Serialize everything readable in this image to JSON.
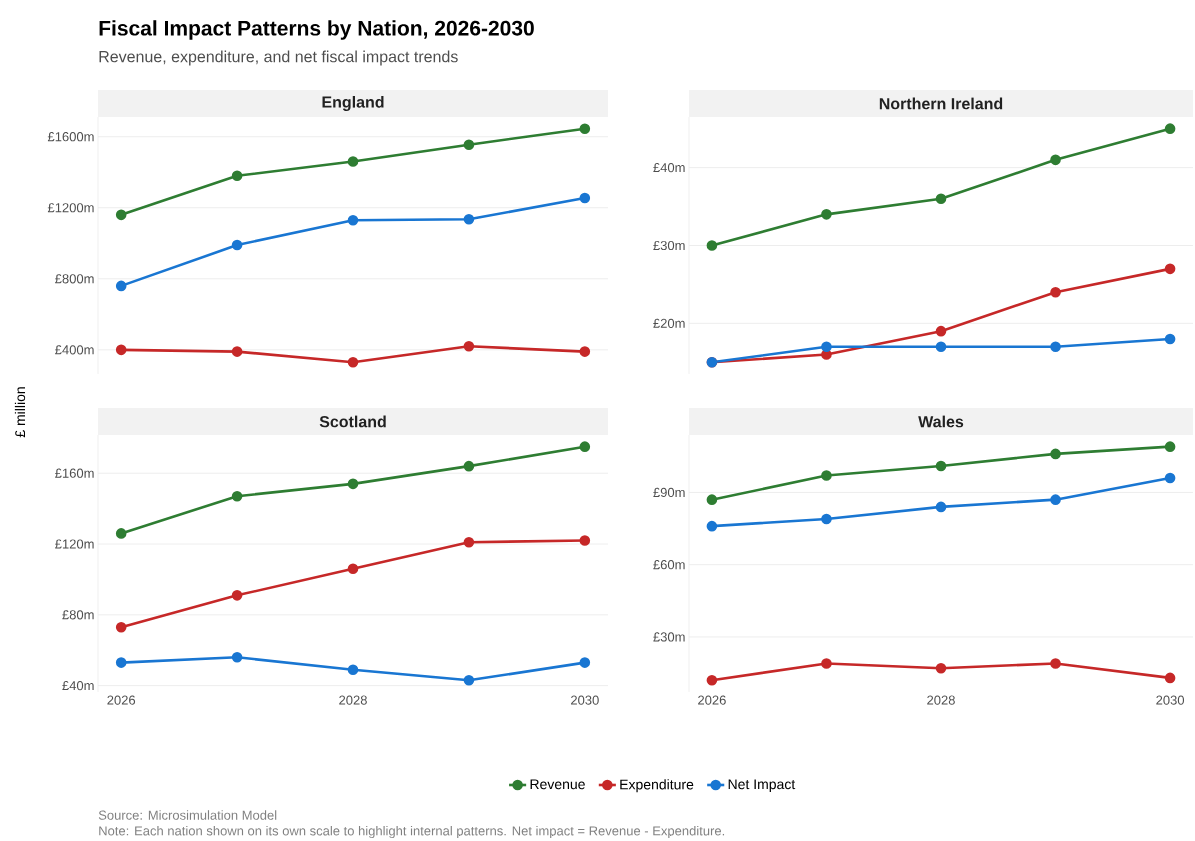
{
  "chart_data": [
    {
      "type": "line",
      "title": "England",
      "annotations": [
        "Fiscal Impact Patterns by Nation, 2026-2030",
        "Revenue, expenditure, and net fiscal impact trends"
      ],
      "ylabel": "£ million",
      "x": [
        2026,
        2027,
        2028,
        2029,
        2030
      ],
      "xlim": [
        2025.8,
        2030.2
      ],
      "xticks": [
        2026,
        2028,
        2030
      ],
      "ylim": [
        264,
        1711
      ],
      "yticks": [
        {
          "value": 400,
          "label": "£400m"
        },
        {
          "value": 800,
          "label": "£800m"
        },
        {
          "value": 1200,
          "label": "£1200m"
        },
        {
          "value": 1600,
          "label": "£1600m"
        }
      ],
      "grid": "y",
      "marker": "circle",
      "line_style": "solid",
      "tick_labels": "y",
      "series": [
        {
          "color": "#2e7d32",
          "values": [
            1160,
            1380,
            1460,
            1555,
            1645
          ]
        },
        {
          "color": "#c62828",
          "values": [
            400,
            390,
            330,
            420,
            390
          ]
        },
        {
          "color": "#1976d2",
          "values": [
            760,
            990,
            1130,
            1135,
            1255
          ]
        }
      ]
    },
    {
      "type": "line",
      "title": "Northern Ireland",
      "x": [
        2026,
        2027,
        2028,
        2029,
        2030
      ],
      "xlim": [
        2025.8,
        2030.2
      ],
      "xticks": [
        2026,
        2028,
        2030
      ],
      "ylim": [
        13.5,
        46.5
      ],
      "yticks": [
        {
          "value": 20,
          "label": "£20m"
        },
        {
          "value": 30,
          "label": "£30m"
        },
        {
          "value": 40,
          "label": "£40m"
        }
      ],
      "grid": "y",
      "marker": "circle",
      "line_style": "solid",
      "tick_labels": "y",
      "series": [
        {
          "color": "#2e7d32",
          "values": [
            30,
            34,
            36,
            41,
            45
          ]
        },
        {
          "color": "#c62828",
          "values": [
            15,
            16,
            19,
            24,
            27
          ]
        },
        {
          "color": "#1976d2",
          "values": [
            15,
            17,
            17,
            17,
            18
          ]
        }
      ]
    },
    {
      "type": "line",
      "title": "Scotland",
      "x": [
        2026,
        2027,
        2028,
        2029,
        2030
      ],
      "xlim": [
        2025.8,
        2030.2
      ],
      "xticks": [
        2026,
        2028,
        2030
      ],
      "ylim": [
        36.4,
        181.6
      ],
      "yticks": [
        {
          "value": 40,
          "label": "£40m"
        },
        {
          "value": 80,
          "label": "£80m"
        },
        {
          "value": 120,
          "label": "£120m"
        },
        {
          "value": 160,
          "label": "£160m"
        }
      ],
      "grid": "y",
      "marker": "circle",
      "line_style": "solid",
      "series": [
        {
          "color": "#2e7d32",
          "values": [
            126,
            147,
            154,
            164,
            175
          ]
        },
        {
          "color": "#c62828",
          "values": [
            73,
            91,
            106,
            121,
            122
          ]
        },
        {
          "color": "#1976d2",
          "values": [
            53,
            56,
            49,
            43,
            53
          ]
        }
      ]
    },
    {
      "type": "line",
      "title": "Wales",
      "annotations": [
        "Source: Microsimulation Model",
        "Note: Each nation shown on its own scale to highlight internal patterns. Net impact = Revenue - Expenditure."
      ],
      "x": [
        2026,
        2027,
        2028,
        2029,
        2030
      ],
      "xlim": [
        2025.8,
        2030.2
      ],
      "xticks": [
        2026,
        2028,
        2030
      ],
      "ylim": [
        7.15,
        113.85
      ],
      "yticks": [
        {
          "value": 30,
          "label": "£30m"
        },
        {
          "value": 60,
          "label": "£60m"
        },
        {
          "value": 90,
          "label": "£90m"
        }
      ],
      "grid": "y",
      "marker": "circle",
      "line_style": "solid",
      "legend": "bottom",
      "series": [
        {
          "name": "Revenue",
          "color": "#2e7d32",
          "values": [
            87,
            97,
            101,
            106,
            109
          ]
        },
        {
          "name": "Expenditure",
          "color": "#c62828",
          "values": [
            12,
            19,
            17,
            19,
            13
          ]
        },
        {
          "name": "Net Impact",
          "color": "#1976d2",
          "values": [
            76,
            79,
            84,
            87,
            96
          ]
        }
      ]
    }
  ]
}
